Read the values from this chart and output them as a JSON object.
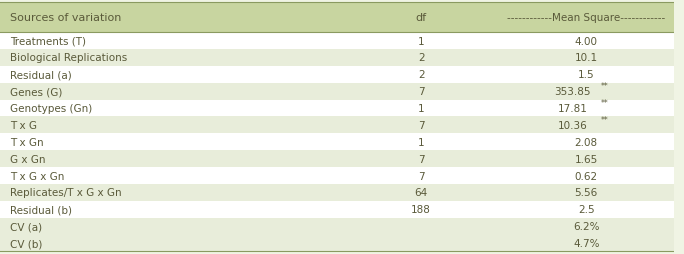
{
  "header": [
    "Sources of variation",
    "df",
    "------------Mean Square------------"
  ],
  "rows": [
    [
      "Treatments (T)",
      "1",
      "4.00"
    ],
    [
      "Biological Replications",
      "2",
      "10.1"
    ],
    [
      "Residual (a)",
      "2",
      "1.5"
    ],
    [
      "Genes (G)",
      "7",
      "353.85**"
    ],
    [
      "Genotypes (Gn)",
      "1",
      "17.81**"
    ],
    [
      "T x G",
      "7",
      "10.36**"
    ],
    [
      "T x Gn",
      "1",
      "2.08"
    ],
    [
      "G x Gn",
      "7",
      "1.65"
    ],
    [
      "T x G x Gn",
      "7",
      "0.62"
    ],
    [
      "Replicates/T x G x Gn",
      "64",
      "5.56"
    ],
    [
      "Residual (b)",
      "188",
      "2.5"
    ],
    [
      "CV (a)",
      "",
      "6.2%"
    ],
    [
      "CV (b)",
      "",
      "4.7%"
    ]
  ],
  "shaded_rows": [
    1,
    3,
    5,
    7,
    9,
    11,
    12
  ],
  "header_bg": "#c8d5a0",
  "row_bg_alt": "#e8edda",
  "row_bg_white": "#ffffff",
  "fig_bg": "#f0f4e4",
  "text_color": "#5a5a3a",
  "border_color": "#8a9a60",
  "font_size": 7.5,
  "header_font_size": 8.0
}
